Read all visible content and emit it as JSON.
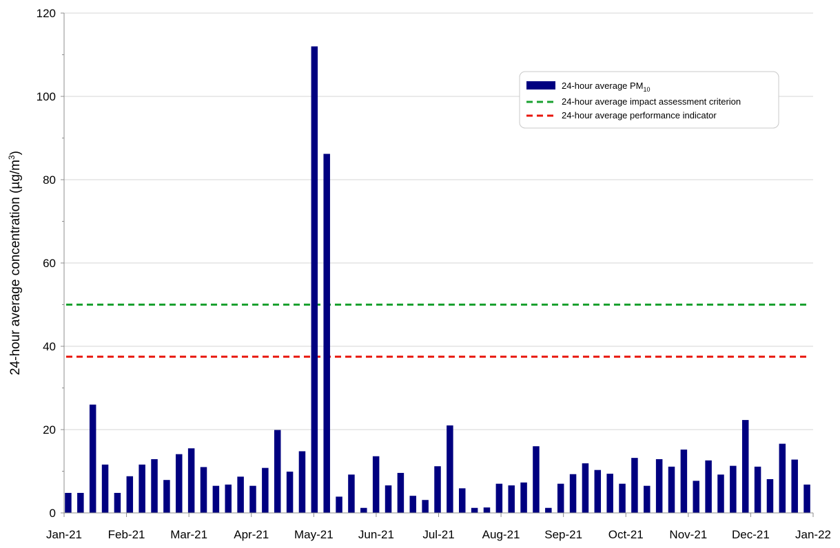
{
  "chart_data": {
    "type": "bar",
    "title": "",
    "xlabel": "",
    "ylabel": "24-hour average concentration (µg/m³)",
    "ylabel_parts": {
      "main": "24-hour average concentration (µg/m",
      "sup": "3",
      "tail": ")"
    },
    "ylim": [
      0,
      120
    ],
    "yticks": [
      "0",
      "20",
      "40",
      "60",
      "80",
      "100",
      "120"
    ],
    "xlim": [
      "2021-01-01",
      "2022-01-01"
    ],
    "xticks": [
      "Jan-21",
      "Feb-21",
      "Mar-21",
      "Apr-21",
      "May-21",
      "Jun-21",
      "Jul-21",
      "Aug-21",
      "Sep-21",
      "Oct-21",
      "Nov-21",
      "Dec-21",
      "Jan-22"
    ],
    "grid": {
      "horizontal": true,
      "vertical": false
    },
    "legend_position": "top-right",
    "series": [
      {
        "name": "24-hour average PM10",
        "legend_main": "24-hour average PM",
        "legend_sub": "10",
        "type": "bar",
        "color": "#000080",
        "x": [
          "2021-01-03",
          "2021-01-09",
          "2021-01-15",
          "2021-01-21",
          "2021-01-27",
          "2021-02-02",
          "2021-02-08",
          "2021-02-14",
          "2021-02-20",
          "2021-02-26",
          "2021-03-04",
          "2021-03-10",
          "2021-03-16",
          "2021-03-22",
          "2021-03-28",
          "2021-04-03",
          "2021-04-09",
          "2021-04-15",
          "2021-04-21",
          "2021-04-27",
          "2021-05-03",
          "2021-05-09",
          "2021-05-15",
          "2021-05-21",
          "2021-05-27",
          "2021-06-02",
          "2021-06-08",
          "2021-06-14",
          "2021-06-20",
          "2021-06-26",
          "2021-07-02",
          "2021-07-08",
          "2021-07-14",
          "2021-07-20",
          "2021-07-26",
          "2021-08-01",
          "2021-08-07",
          "2021-08-13",
          "2021-08-19",
          "2021-08-25",
          "2021-08-31",
          "2021-09-06",
          "2021-09-12",
          "2021-09-18",
          "2021-09-24",
          "2021-09-30",
          "2021-10-06",
          "2021-10-12",
          "2021-10-18",
          "2021-10-24",
          "2021-10-30",
          "2021-11-05",
          "2021-11-11",
          "2021-11-17",
          "2021-11-23",
          "2021-11-29",
          "2021-12-05",
          "2021-12-11",
          "2021-12-17",
          "2021-12-23",
          "2021-12-29"
        ],
        "values": [
          4.8,
          4.8,
          26,
          11.6,
          4.8,
          8.8,
          11.6,
          12.9,
          7.9,
          14.1,
          15.5,
          11,
          6.5,
          6.8,
          8.7,
          6.5,
          10.8,
          19.9,
          9.9,
          14.8,
          112,
          86.2,
          3.9,
          9.2,
          1.2,
          13.6,
          6.6,
          9.6,
          4.1,
          3.1,
          11.2,
          21,
          5.9,
          1.2,
          1.3,
          7,
          6.6,
          7.3,
          16,
          1.2,
          7,
          9.3,
          11.9,
          10.3,
          9.4,
          7,
          13.2,
          6.5,
          12.9,
          11.1,
          15.2,
          7.7,
          12.6,
          9.2,
          11.3,
          22.3,
          11.1,
          8.1,
          16.6,
          12.8,
          6.8
        ]
      },
      {
        "name": "24-hour average impact assessment criterion",
        "type": "line",
        "style": "dashed",
        "color": "#1aa130",
        "value": 50
      },
      {
        "name": "24-hour average performance indicator",
        "type": "line",
        "style": "dashed",
        "color": "#e8160c",
        "value": 37.5
      }
    ]
  }
}
